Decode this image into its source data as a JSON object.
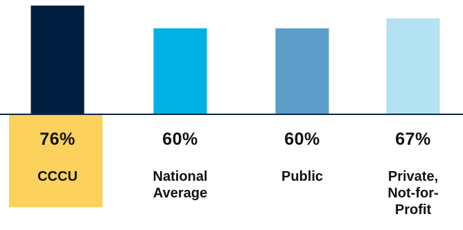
{
  "chart_data": {
    "type": "bar",
    "categories": [
      "CCCU",
      "National Average",
      "Public",
      "Private, Not-for-Profit"
    ],
    "category_lines": [
      [
        "CCCU"
      ],
      [
        "National",
        "Average"
      ],
      [
        "Public"
      ],
      [
        "Private,",
        "Not-for-",
        "Profit"
      ]
    ],
    "values": [
      76,
      60,
      60,
      67
    ],
    "value_labels": [
      "76%",
      "60%",
      "60%",
      "67%"
    ],
    "colors": [
      "#001f3f",
      "#00b2e3",
      "#5c9dc9",
      "#b3e2f3"
    ],
    "highlight_color": "#fcd15c",
    "baseline_color": "#0b2545",
    "ylim": [
      0,
      77
    ],
    "title": "",
    "xlabel": "",
    "ylabel": "",
    "grid": false,
    "legend": "none"
  }
}
